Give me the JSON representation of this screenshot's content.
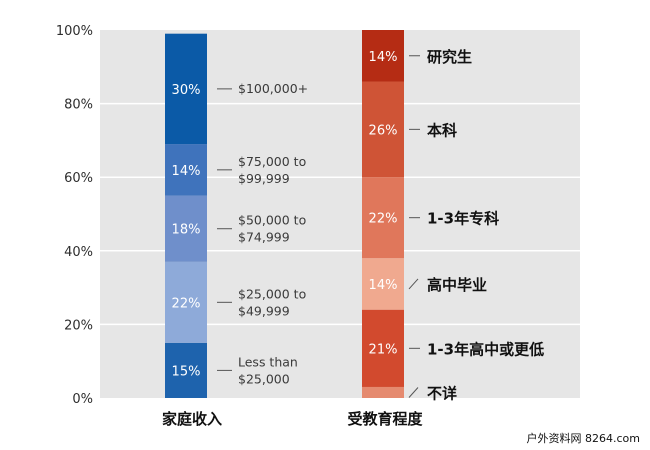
{
  "chart_data": {
    "type": "bar",
    "stacked": true,
    "ylim": [
      0,
      100
    ],
    "y_ticks": [
      "0%",
      "20%",
      "40%",
      "60%",
      "80%",
      "100%"
    ],
    "grid": true,
    "categories": [
      "家庭收入",
      "受教育程度"
    ],
    "stacks": [
      {
        "category": "家庭收入",
        "segments": [
          {
            "value": 15,
            "label": "15%",
            "name": [
              "Less than",
              "$25,000"
            ],
            "color": "#1e63ad"
          },
          {
            "value": 22,
            "label": "22%",
            "name": [
              "$25,000 to",
              "$49,999"
            ],
            "color": "#8eaad9"
          },
          {
            "value": 18,
            "label": "18%",
            "name": [
              "$50,000 to",
              "$74,999"
            ],
            "color": "#6f8fcb"
          },
          {
            "value": 14,
            "label": "14%",
            "name": [
              "$75,000 to",
              "$99,999"
            ],
            "color": "#3f73bc"
          },
          {
            "value": 30,
            "label": "30%",
            "name": [
              "$100,000+"
            ],
            "color": "#0b5aa7"
          }
        ]
      },
      {
        "category": "受教育程度",
        "segments": [
          {
            "value": 3,
            "label": "",
            "name": [
              "不详"
            ],
            "color": "#e58a6f"
          },
          {
            "value": 21,
            "label": "21%",
            "name": [
              "1-3年高中或更低"
            ],
            "color": "#d24a2e"
          },
          {
            "value": 14,
            "label": "14%",
            "name": [
              "高中毕业"
            ],
            "color": "#f0a98f"
          },
          {
            "value": 22,
            "label": "22%",
            "name": [
              "1-3年专科"
            ],
            "color": "#e0775b"
          },
          {
            "value": 26,
            "label": "26%",
            "name": [
              "本科"
            ],
            "color": "#cf5436"
          },
          {
            "value": 14,
            "label": "14%",
            "name": [
              "研究生"
            ],
            "color": "#b52c14"
          }
        ]
      }
    ]
  },
  "watermark": "户外资料网 8264.com"
}
